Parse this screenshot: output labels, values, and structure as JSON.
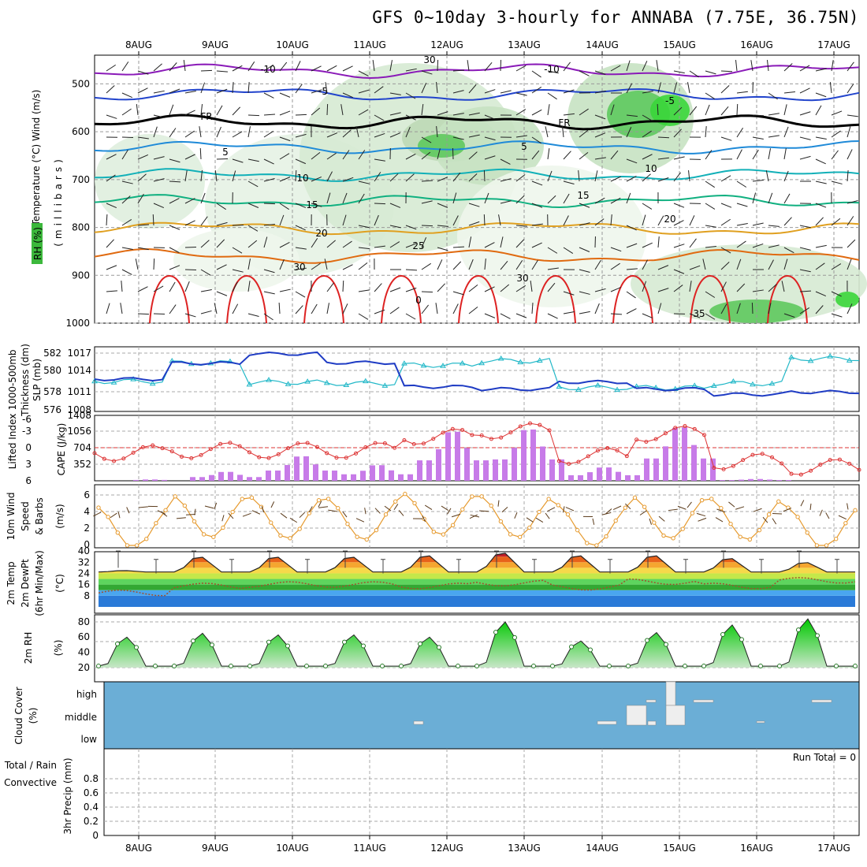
{
  "title": "GFS 0~10day 3-hourly for ANNABA (7.75E, 36.75N)",
  "days": [
    "8AUG",
    "9AUG",
    "10AUG",
    "11AUG",
    "12AUG",
    "13AUG",
    "14AUG",
    "15AUG",
    "16AUG",
    "17AUG"
  ],
  "colors": {
    "temp_cold": "#2244cc",
    "temp_freeze": "#000000",
    "rh": "#33cc33",
    "slp": "#1f3cc4",
    "thickness": "#22b8c8",
    "cape": "#c77be8",
    "li": "#dd3333",
    "wind": "#e69a2e",
    "rh2m": "#22cc22",
    "cloud": "#6baed6"
  },
  "panels": {
    "upper": {
      "ylabels": [
        "Temperature",
        "(°C)",
        "Wind",
        "(m/s)"
      ],
      "ylabel2": "(millibars)",
      "rh_label": "RH (%)",
      "pressure_ticks": [
        "500",
        "600",
        "700",
        "800",
        "900",
        "1000"
      ],
      "contour_labels": [
        {
          "text": "-10",
          "color": "#8a1ab8"
        },
        {
          "text": "-10",
          "color": "#8a1ab8"
        },
        {
          "text": "-5",
          "color": "#2244cc"
        },
        {
          "text": "-5",
          "color": "#2244cc"
        },
        {
          "text": "FR",
          "color": "#000000"
        },
        {
          "text": "FR",
          "color": "#000000"
        },
        {
          "text": "5",
          "color": "#1f8ad8"
        },
        {
          "text": "5",
          "color": "#1f8ad8"
        },
        {
          "text": "10",
          "color": "#12b0b8"
        },
        {
          "text": "10",
          "color": "#12b0b8"
        },
        {
          "text": "15",
          "color": "#10b080"
        },
        {
          "text": "15",
          "color": "#10b080"
        },
        {
          "text": "20",
          "color": "#e0a020"
        },
        {
          "text": "20",
          "color": "#e0a020"
        },
        {
          "text": "25",
          "color": "#e06a10"
        },
        {
          "text": "0",
          "color": "#dd2222"
        },
        {
          "text": "30",
          "color": "#888888"
        },
        {
          "text": "30",
          "color": "#888888"
        },
        {
          "text": "30",
          "color": "#888888"
        },
        {
          "text": "35",
          "color": "#e06a10"
        }
      ]
    },
    "slp": {
      "left_label": "1000-500mb",
      "left_label2": "Thickness (dm)",
      "right_label": "SLP (mb)",
      "left_ticks": [
        "582",
        "580",
        "578",
        "576"
      ],
      "right_ticks": [
        "1017",
        "1014",
        "1011",
        "1008"
      ]
    },
    "cape": {
      "left_label": "Lifted Index",
      "right_label": "CAPE (J/kg)",
      "left_ticks": [
        "-6",
        "-3",
        "0",
        "3",
        "6"
      ],
      "right_ticks": [
        "1408",
        "1056",
        "704",
        "352"
      ]
    },
    "wind10": {
      "label1": "10m Wind",
      "label2": "Speed",
      "label3": "& Barbs",
      "unit": "(m/s)",
      "ticks": [
        "6",
        "4",
        "2",
        "0"
      ]
    },
    "temp2m": {
      "label1": "2m Temp",
      "label2": "2m DewPt",
      "label3": "(6hr Min/Max)",
      "unit": "(°C)",
      "ticks": [
        "40",
        "32",
        "24",
        "16",
        "8"
      ]
    },
    "rh2m": {
      "label": "2m RH",
      "unit": "(%)",
      "ticks": [
        "80",
        "60",
        "40",
        "20"
      ]
    },
    "cloud": {
      "label": "Cloud Cover",
      "unit": "(%)",
      "levels": [
        "high",
        "middle",
        "low"
      ]
    },
    "precip": {
      "label1": "Total / Rain",
      "label2": "Convective",
      "label3": "3hr Precip (mm)",
      "ticks": [
        "0.8",
        "0.6",
        "0.4",
        "0.2",
        "0"
      ],
      "run_total": "Run Total = 0"
    }
  },
  "chart_data": [
    {
      "type": "line",
      "title": "1000-500mb Thickness / SLP",
      "x": [
        "8AUG",
        "9AUG",
        "10AUG",
        "11AUG",
        "12AUG",
        "13AUG",
        "14AUG",
        "15AUG",
        "16AUG",
        "17AUG"
      ],
      "series": [
        {
          "name": "1000-500mb Thickness (dm)",
          "values": [
            578.8,
            580.5,
            578.7,
            578.6,
            580.3,
            580.7,
            578.2,
            578.2,
            578.6,
            580.9
          ]
        },
        {
          "name": "SLP (mb)",
          "values": [
            1012.5,
            1015.2,
            1016.8,
            1015.3,
            1011.2,
            1010.8,
            1012.0,
            1010.8,
            1009.9,
            1010.3
          ]
        }
      ],
      "ylim": [
        576,
        582
      ]
    },
    {
      "type": "bar",
      "title": "CAPE / Lifted Index",
      "x": [
        "8AUG",
        "9AUG",
        "10AUG",
        "11AUG",
        "12AUG",
        "13AUG",
        "14AUG",
        "15AUG",
        "16AUG",
        "17AUG"
      ],
      "series": [
        {
          "name": "CAPE (J/kg)",
          "values": [
            30,
            200,
            550,
            350,
            1100,
            1150,
            300,
            1200,
            40,
            10
          ]
        },
        {
          "name": "Lifted Index",
          "values": [
            1,
            0.5,
            0.5,
            0.5,
            -2,
            -3,
            1.5,
            -2.5,
            2.5,
            3.5
          ]
        }
      ]
    },
    {
      "type": "line",
      "title": "10m Wind Speed",
      "x": [
        "8AUG",
        "9AUG",
        "10AUG",
        "11AUG",
        "12AUG",
        "13AUG",
        "14AUG",
        "15AUG",
        "16AUG",
        "17AUG"
      ],
      "series": [
        {
          "name": "Speed (m/s)",
          "values": [
            1,
            5.5,
            5,
            4.5,
            6.5,
            5.5,
            2,
            5,
            4.5,
            1
          ]
        }
      ],
      "ylim": [
        0,
        7
      ]
    },
    {
      "type": "area",
      "title": "2m Temp / DewPt",
      "x": [
        "8AUG",
        "9AUG",
        "10AUG",
        "11AUG",
        "12AUG",
        "13AUG",
        "14AUG",
        "15AUG",
        "16AUG",
        "17AUG"
      ],
      "series": [
        {
          "name": "2m Temp (°C)",
          "values": [
            26,
            36,
            36,
            36,
            37,
            39,
            37,
            37,
            35,
            32
          ]
        },
        {
          "name": "2m DewPt (°C)",
          "values": [
            12,
            17,
            18,
            18,
            17,
            19,
            16,
            20,
            17,
            21
          ]
        }
      ],
      "ylim": [
        0,
        40
      ]
    },
    {
      "type": "area",
      "title": "2m RH",
      "x": [
        "8AUG",
        "9AUG",
        "10AUG",
        "11AUG",
        "12AUG",
        "13AUG",
        "14AUG",
        "15AUG",
        "16AUG",
        "17AUG"
      ],
      "series": [
        {
          "name": "2m RH (%)",
          "values": [
            60,
            65,
            63,
            63,
            60,
            80,
            55,
            66,
            76,
            84
          ]
        }
      ],
      "ylim": [
        10,
        85
      ]
    },
    {
      "type": "table",
      "title": "3hr Precip",
      "series": [
        {
          "name": "Precip (mm)",
          "values": [
            0,
            0,
            0,
            0,
            0,
            0,
            0,
            0,
            0,
            0
          ]
        }
      ],
      "ylim": [
        0,
        1
      ]
    }
  ]
}
